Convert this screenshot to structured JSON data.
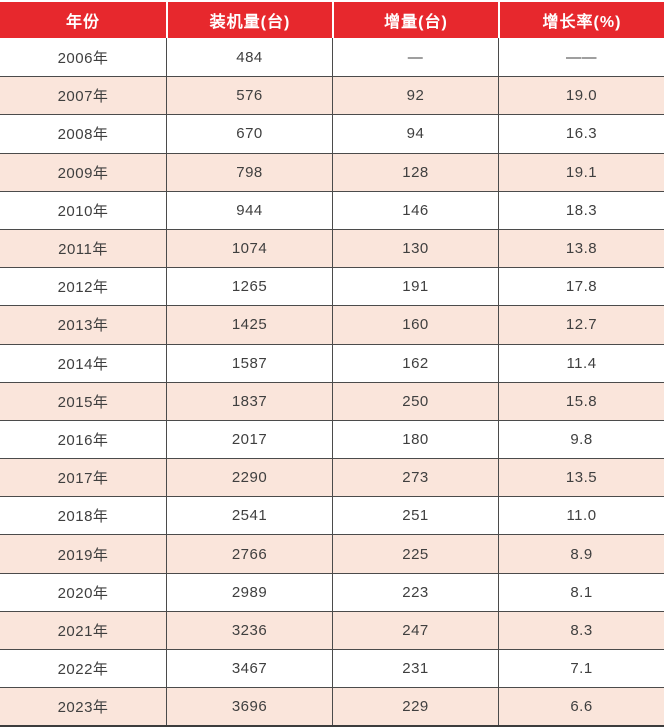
{
  "colors": {
    "page_bg": "#ffffff",
    "header_bg": "#e7282d",
    "header_text": "#ffffff",
    "row_bg": "#ffffff",
    "row_alt_bg": "#fae5db",
    "text": "#3f3f3f",
    "grid": "#4b4b4b",
    "grid_strong": "#3c3c3c"
  },
  "table": {
    "columns": [
      {
        "key": "year",
        "label": "年份"
      },
      {
        "key": "installed",
        "label": "装机量(台)"
      },
      {
        "key": "increment",
        "label": "增量(台)"
      },
      {
        "key": "growth",
        "label": "增长率(%)"
      }
    ],
    "rows": [
      {
        "year": "2006年",
        "installed": "484",
        "increment": "—",
        "growth": "——"
      },
      {
        "year": "2007年",
        "installed": "576",
        "increment": "92",
        "growth": "19.0"
      },
      {
        "year": "2008年",
        "installed": "670",
        "increment": "94",
        "growth": "16.3"
      },
      {
        "year": "2009年",
        "installed": "798",
        "increment": "128",
        "growth": "19.1"
      },
      {
        "year": "2010年",
        "installed": "944",
        "increment": "146",
        "growth": "18.3"
      },
      {
        "year": "2011年",
        "installed": "1074",
        "increment": "130",
        "growth": "13.8"
      },
      {
        "year": "2012年",
        "installed": "1265",
        "increment": "191",
        "growth": "17.8"
      },
      {
        "year": "2013年",
        "installed": "1425",
        "increment": "160",
        "growth": "12.7"
      },
      {
        "year": "2014年",
        "installed": "1587",
        "increment": "162",
        "growth": "11.4"
      },
      {
        "year": "2015年",
        "installed": "1837",
        "increment": "250",
        "growth": "15.8"
      },
      {
        "year": "2016年",
        "installed": "2017",
        "increment": "180",
        "growth": "9.8"
      },
      {
        "year": "2017年",
        "installed": "2290",
        "increment": "273",
        "growth": "13.5"
      },
      {
        "year": "2018年",
        "installed": "2541",
        "increment": "251",
        "growth": "11.0"
      },
      {
        "year": "2019年",
        "installed": "2766",
        "increment": "225",
        "growth": "8.9"
      },
      {
        "year": "2020年",
        "installed": "2989",
        "increment": "223",
        "growth": "8.1"
      },
      {
        "year": "2021年",
        "installed": "3236",
        "increment": "247",
        "growth": "8.3"
      },
      {
        "year": "2022年",
        "installed": "3467",
        "increment": "231",
        "growth": "7.1"
      },
      {
        "year": "2023年",
        "installed": "3696",
        "increment": "229",
        "growth": "6.6"
      }
    ]
  },
  "chart_data": {
    "type": "table",
    "columns": [
      "年份",
      "装机量(台)",
      "增量(台)",
      "增长率(%)"
    ],
    "rows": [
      [
        "2006年",
        484,
        null,
        null
      ],
      [
        "2007年",
        576,
        92,
        19.0
      ],
      [
        "2008年",
        670,
        94,
        16.3
      ],
      [
        "2009年",
        798,
        128,
        19.1
      ],
      [
        "2010年",
        944,
        146,
        18.3
      ],
      [
        "2011年",
        1074,
        130,
        13.8
      ],
      [
        "2012年",
        1265,
        191,
        17.8
      ],
      [
        "2013年",
        1425,
        160,
        12.7
      ],
      [
        "2014年",
        1587,
        162,
        11.4
      ],
      [
        "2015年",
        1837,
        250,
        15.8
      ],
      [
        "2016年",
        2017,
        180,
        9.8
      ],
      [
        "2017年",
        2290,
        273,
        13.5
      ],
      [
        "2018年",
        2541,
        251,
        11.0
      ],
      [
        "2019年",
        2766,
        225,
        8.9
      ],
      [
        "2020年",
        2989,
        223,
        8.1
      ],
      [
        "2021年",
        3236,
        247,
        8.3
      ],
      [
        "2022年",
        3467,
        231,
        7.1
      ],
      [
        "2023年",
        3696,
        229,
        6.6
      ]
    ],
    "layout_hints": {
      "header_fill": "#e7282d",
      "zebra_striping": true,
      "first_data_row_missing_values_shown_as": "em-dash"
    }
  }
}
